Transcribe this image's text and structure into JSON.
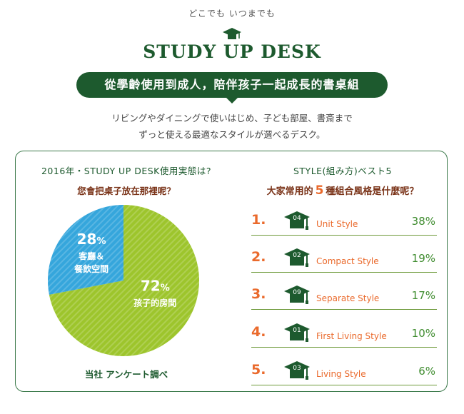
{
  "header": {
    "tagline": "どこでも いつまでも",
    "logo": "STUDY UP DESK",
    "banner": "從學齡使用到成人，陪伴孩子一起成長的書桌組",
    "intro_line1": "リビングやダイニングで使いはじめ、子ども部屋、書斎まで",
    "intro_line2": "ずっと使える最適なスタイルが選べるデスク。"
  },
  "left_panel": {
    "heading1": "2016年・STUDY UP DESK使用実態は?",
    "heading2": "您會把桌子放在那裡呢？",
    "source": "当社 アンケート調べ"
  },
  "right_panel": {
    "heading1": "STYLE(組み方)ベスト5",
    "heading2_pre": "大家常用的",
    "heading2_num": "5",
    "heading2_post": "種組合風格是什麼呢？"
  },
  "chart_data": [
    {
      "type": "pie",
      "slices": [
        {
          "label_line1": "孩子的房間",
          "label_line2": "",
          "value": 72,
          "value_text": "72",
          "unit": "%",
          "color": "#9dc52c"
        },
        {
          "label_line1": "客廳＆",
          "label_line2": "餐飲空間",
          "value": 28,
          "value_text": "28",
          "unit": "%",
          "color": "#35a6dc"
        }
      ]
    },
    {
      "type": "table",
      "rows": [
        {
          "rank": "1",
          "code": "04",
          "style": "Unit Style",
          "value": 38,
          "value_text": "38%"
        },
        {
          "rank": "2",
          "code": "02",
          "style": "Compact Style",
          "value": 19,
          "value_text": "19%"
        },
        {
          "rank": "3",
          "code": "09",
          "style": "Separate Style",
          "value": 17,
          "value_text": "17%"
        },
        {
          "rank": "4",
          "code": "01",
          "style": "First Living Style",
          "value": 10,
          "value_text": "10%"
        },
        {
          "rank": "5",
          "code": "03",
          "style": "Living Style",
          "value": 6,
          "value_text": "6%"
        }
      ]
    }
  ],
  "colors": {
    "brand_green": "#1d5a2e",
    "accent_orange": "#ea6a2c",
    "pct_green": "#3f8c2f"
  }
}
